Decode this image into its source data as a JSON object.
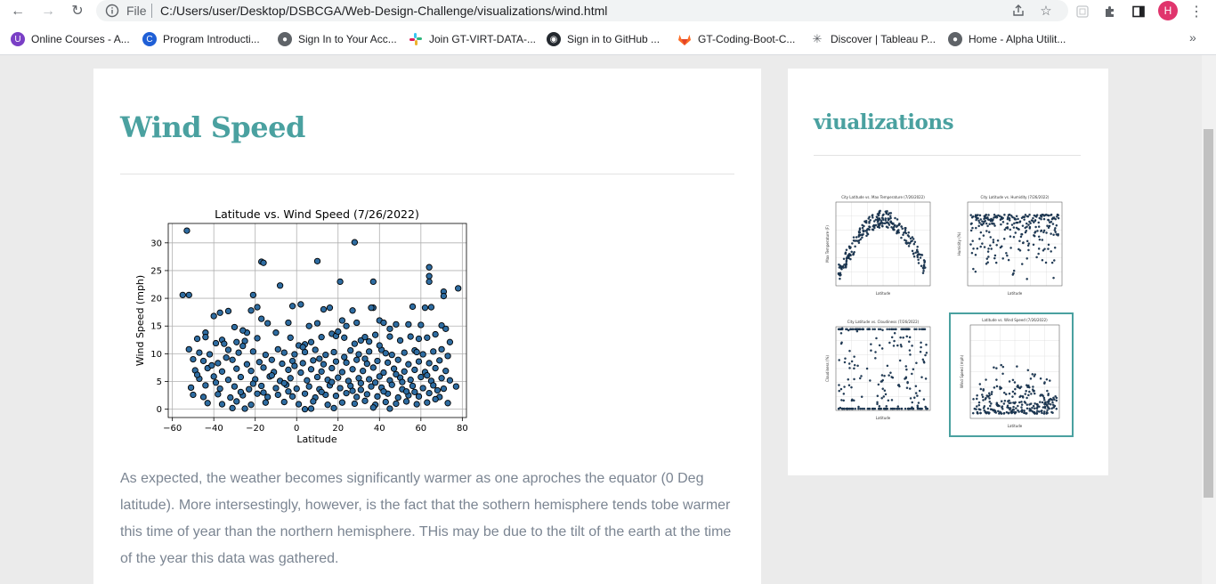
{
  "browser": {
    "file_label": "File",
    "url": "C:/Users/user/Desktop/DSBCGA/Web-Design-Challenge/visualizations/wind.html",
    "profile_initial": "H",
    "bookmarks": [
      {
        "label": "Online Courses - A...",
        "color": "#7a3fc6"
      },
      {
        "label": "Program Introducti...",
        "color": "#1f5fd6"
      },
      {
        "label": "Sign In to Your Acc...",
        "color": "#5f6368"
      },
      {
        "label": "Join GT-VIRT-DATA-...",
        "color": "#e01e5a"
      },
      {
        "label": "Sign in to GitHub ...",
        "color": "#24292f"
      },
      {
        "label": "GT-Coding-Boot-C...",
        "color": "#fc6d26"
      },
      {
        "label": "Discover | Tableau P...",
        "color": "#5f6368"
      },
      {
        "label": "Home - Alpha Utilit...",
        "color": "#5f6368"
      }
    ]
  },
  "main": {
    "title": "Wind Speed",
    "description": "As expected, the weather becomes significantly warmer as one aproches the equator (0 Deg latitude). More intersestingly, however, is the fact that the sothern hemisphere tends tobe warmer this time of year than the northern hemisphere. THis may be due to the tilt of the earth at the time of the year this data was gathered."
  },
  "sidebar": {
    "title": "viualizations",
    "thumbnails": [
      {
        "title": "City Latitude vs. Max Temperature (7/26/2022)",
        "ylabel": "Max Temperature (F)",
        "xlabel": "Latitude"
      },
      {
        "title": "City Latitude vs. Humidity (7/26/2022)",
        "ylabel": "Humidity (%)",
        "xlabel": "Latitude"
      },
      {
        "title": "City Latitude vs. Cloudiness (7/26/2022)",
        "ylabel": "Cloudiness (%)",
        "xlabel": "Latitude"
      },
      {
        "title": "Latitude vs. Wind Speed (7/26/2022)",
        "ylabel": "Wind Speed (mph)",
        "xlabel": "Latitude"
      }
    ]
  },
  "chart_data": {
    "type": "scatter",
    "title": "Latitude vs. Wind Speed (7/26/2022)",
    "xlabel": "Latitude",
    "ylabel": "Wind Speed (mph)",
    "xlim": [
      -62,
      82
    ],
    "ylim": [
      -1.5,
      33.5
    ],
    "xticks": [
      -60,
      -40,
      -20,
      0,
      20,
      40,
      60,
      80
    ],
    "yticks": [
      0,
      5,
      10,
      15,
      20,
      25,
      30
    ],
    "grid": true,
    "marker_color": "#2e6ca1",
    "edge_color": "#000000",
    "points": [
      [
        -53,
        32.2
      ],
      [
        -55,
        20.6
      ],
      [
        -52,
        20.6
      ],
      [
        -21,
        20.6
      ],
      [
        -17,
        26.6
      ],
      [
        -16,
        26.4
      ],
      [
        10,
        26.7
      ],
      [
        28,
        30.1
      ],
      [
        -8,
        22.3
      ],
      [
        21,
        23
      ],
      [
        37,
        23
      ],
      [
        64,
        25.6
      ],
      [
        64,
        24
      ],
      [
        64,
        23
      ],
      [
        71,
        21.2
      ],
      [
        71,
        20.4
      ],
      [
        78,
        21.8
      ],
      [
        2,
        18.9
      ],
      [
        -4,
        15.6
      ],
      [
        -2,
        18.6
      ],
      [
        -22,
        17.8
      ],
      [
        -19,
        18.4
      ],
      [
        -14,
        15.5
      ],
      [
        -17,
        16.3
      ],
      [
        16,
        18.3
      ],
      [
        13,
        18
      ],
      [
        27,
        17.8
      ],
      [
        37,
        18.3
      ],
      [
        36,
        18.3
      ],
      [
        56,
        18.5
      ],
      [
        62,
        18.3
      ],
      [
        65,
        18.4
      ],
      [
        -37,
        17.4
      ],
      [
        -33,
        17.7
      ],
      [
        -40,
        16.8
      ],
      [
        22,
        16
      ],
      [
        24,
        15
      ],
      [
        29,
        15.6
      ],
      [
        40,
        16
      ],
      [
        42,
        15.6
      ],
      [
        48,
        15.3
      ],
      [
        54,
        15.3
      ],
      [
        60,
        15.2
      ],
      [
        70,
        15.1
      ],
      [
        72,
        14.5
      ],
      [
        6,
        15
      ],
      [
        10,
        15.5
      ],
      [
        -30,
        14.8
      ],
      [
        -44,
        13.8
      ],
      [
        -44,
        13
      ],
      [
        -48,
        12.7
      ],
      [
        -36,
        12.5
      ],
      [
        -39,
        11.9
      ],
      [
        -35,
        11.8
      ],
      [
        -29,
        12.1
      ],
      [
        -25,
        12.3
      ],
      [
        -24,
        13.8
      ],
      [
        -10,
        13.8
      ],
      [
        -3,
        12.9
      ],
      [
        1,
        11.5
      ],
      [
        4,
        11.7
      ],
      [
        7,
        12.1
      ],
      [
        12,
        13
      ],
      [
        17,
        13.6
      ],
      [
        19,
        13.2
      ],
      [
        23,
        12.9
      ],
      [
        31,
        12.4
      ],
      [
        33,
        13
      ],
      [
        38,
        13.4
      ],
      [
        45,
        13.1
      ],
      [
        50,
        12.4
      ],
      [
        55,
        13.1
      ],
      [
        59,
        12.7
      ],
      [
        63,
        12.9
      ],
      [
        67,
        13.5
      ],
      [
        74,
        12.1
      ],
      [
        -52,
        10.8
      ],
      [
        -47,
        10.2
      ],
      [
        -42,
        9.9
      ],
      [
        -33,
        10.7
      ],
      [
        -28,
        10.2
      ],
      [
        -21,
        10.4
      ],
      [
        -15,
        9.8
      ],
      [
        -9,
        10.8
      ],
      [
        -6,
        10.2
      ],
      [
        -1,
        9.9
      ],
      [
        4,
        10.3
      ],
      [
        9,
        10.7
      ],
      [
        14,
        9.8
      ],
      [
        18,
        10.3
      ],
      [
        26,
        10.6
      ],
      [
        30,
        9.9
      ],
      [
        35,
        10.4
      ],
      [
        41,
        10.7
      ],
      [
        46,
        9.8
      ],
      [
        52,
        10.2
      ],
      [
        57,
        10.6
      ],
      [
        61,
        9.9
      ],
      [
        66,
        10.4
      ],
      [
        70,
        10.8
      ],
      [
        73,
        9.6
      ],
      [
        -50,
        9
      ],
      [
        -45,
        8.7
      ],
      [
        -38,
        8.3
      ],
      [
        -31,
        8.9
      ],
      [
        -24,
        8.1
      ],
      [
        -18,
        8.5
      ],
      [
        -12,
        8.9
      ],
      [
        -7,
        8.2
      ],
      [
        -2,
        8.7
      ],
      [
        3,
        8.3
      ],
      [
        8,
        8.8
      ],
      [
        13,
        8.1
      ],
      [
        19,
        8.6
      ],
      [
        24,
        8.4
      ],
      [
        29,
        8.9
      ],
      [
        34,
        8.2
      ],
      [
        39,
        8.7
      ],
      [
        44,
        8.4
      ],
      [
        49,
        8.9
      ],
      [
        54,
        8.1
      ],
      [
        59,
        8.6
      ],
      [
        64,
        8.3
      ],
      [
        69,
        8.8
      ],
      [
        -49,
        7
      ],
      [
        -43,
        7.4
      ],
      [
        -36,
        6.8
      ],
      [
        -29,
        7.3
      ],
      [
        -22,
        6.9
      ],
      [
        -16,
        7.5
      ],
      [
        -11,
        6.7
      ],
      [
        -4,
        7.1
      ],
      [
        2,
        6.6
      ],
      [
        7,
        7.2
      ],
      [
        12,
        6.8
      ],
      [
        17,
        7.4
      ],
      [
        22,
        6.7
      ],
      [
        27,
        7.2
      ],
      [
        32,
        6.9
      ],
      [
        37,
        7.5
      ],
      [
        42,
        6.6
      ],
      [
        47,
        7.3
      ],
      [
        52,
        6.8
      ],
      [
        57,
        7.1
      ],
      [
        62,
        6.7
      ],
      [
        67,
        7.4
      ],
      [
        72,
        6.9
      ],
      [
        -47,
        5.5
      ],
      [
        -40,
        5.9
      ],
      [
        -33,
        5.3
      ],
      [
        -27,
        5.8
      ],
      [
        -20,
        5.4
      ],
      [
        -13,
        5.9
      ],
      [
        -8,
        5.1
      ],
      [
        -3,
        5.6
      ],
      [
        5,
        5.2
      ],
      [
        10,
        5.8
      ],
      [
        15,
        5.3
      ],
      [
        20,
        5.7
      ],
      [
        25,
        5.1
      ],
      [
        30,
        5.6
      ],
      [
        35,
        5.4
      ],
      [
        40,
        5.9
      ],
      [
        45,
        5.2
      ],
      [
        50,
        5.7
      ],
      [
        55,
        5.3
      ],
      [
        60,
        5.8
      ],
      [
        65,
        5.1
      ],
      [
        70,
        5.6
      ],
      [
        -51,
        3.9
      ],
      [
        -44,
        4.3
      ],
      [
        -37,
        3.7
      ],
      [
        -30,
        4.1
      ],
      [
        -23,
        3.6
      ],
      [
        -17,
        4.2
      ],
      [
        -10,
        3.8
      ],
      [
        -5,
        4.4
      ],
      [
        0,
        3.7
      ],
      [
        6,
        4.1
      ],
      [
        11,
        3.6
      ],
      [
        16,
        4.3
      ],
      [
        21,
        3.8
      ],
      [
        26,
        4.2
      ],
      [
        31,
        3.5
      ],
      [
        36,
        4.1
      ],
      [
        41,
        3.9
      ],
      [
        46,
        4.4
      ],
      [
        51,
        3.6
      ],
      [
        56,
        4.2
      ],
      [
        61,
        3.8
      ],
      [
        66,
        4.3
      ],
      [
        71,
        3.7
      ],
      [
        77,
        4.1
      ],
      [
        -50,
        2.6
      ],
      [
        -45,
        2.2
      ],
      [
        -38,
        2.7
      ],
      [
        -32,
        2.1
      ],
      [
        -26,
        2.5
      ],
      [
        -19,
        2.8
      ],
      [
        -14,
        2.2
      ],
      [
        -9,
        2.6
      ],
      [
        -2,
        2.3
      ],
      [
        4,
        2.8
      ],
      [
        9,
        2.1
      ],
      [
        14,
        2.6
      ],
      [
        19,
        2.4
      ],
      [
        24,
        2.9
      ],
      [
        29,
        2.2
      ],
      [
        34,
        2.7
      ],
      [
        39,
        2.3
      ],
      [
        44,
        2.8
      ],
      [
        49,
        2.1
      ],
      [
        54,
        2.5
      ],
      [
        59,
        2.3
      ],
      [
        64,
        2.9
      ],
      [
        69,
        2.2
      ],
      [
        -43,
        1.1
      ],
      [
        -36,
        0.9
      ],
      [
        -29,
        1.4
      ],
      [
        -22,
        0.8
      ],
      [
        -15,
        1.2
      ],
      [
        -6,
        1.3
      ],
      [
        1,
        0.9
      ],
      [
        8,
        1.4
      ],
      [
        15,
        0.8
      ],
      [
        22,
        1.2
      ],
      [
        28,
        1
      ],
      [
        33,
        1.5
      ],
      [
        38,
        0.8
      ],
      [
        43,
        1.3
      ],
      [
        48,
        1
      ],
      [
        53,
        1.4
      ],
      [
        58,
        0.9
      ],
      [
        63,
        1.2
      ],
      [
        73,
        1.1
      ],
      [
        -31,
        0.2
      ],
      [
        -25,
        0.1
      ],
      [
        4,
        0
      ],
      [
        7,
        0.1
      ],
      [
        18,
        0.2
      ],
      [
        37,
        0.3
      ],
      [
        45,
        0.1
      ],
      [
        -48,
        6.2
      ],
      [
        -41,
        7.9
      ],
      [
        -34,
        9.3
      ],
      [
        -26,
        11.4
      ],
      [
        -19,
        12.8
      ],
      [
        -12,
        6.1
      ],
      [
        -6,
        4.7
      ],
      [
        -1,
        7.8
      ],
      [
        3,
        11.2
      ],
      [
        11,
        9.1
      ],
      [
        17,
        4.9
      ],
      [
        23,
        9.4
      ],
      [
        28,
        11.8
      ],
      [
        33,
        9.1
      ],
      [
        38,
        4.8
      ],
      [
        43,
        10.1
      ],
      [
        48,
        6.3
      ],
      [
        53,
        3.2
      ],
      [
        58,
        10.3
      ],
      [
        63,
        6.1
      ],
      [
        68,
        3.4
      ],
      [
        74,
        5.2
      ],
      [
        -27,
        3.1
      ],
      [
        -16,
        3
      ],
      [
        -4,
        3.2
      ],
      [
        12,
        3.1
      ],
      [
        27,
        3.3
      ],
      [
        42,
        3.2
      ],
      [
        57,
        3.1
      ],
      [
        67,
        1.8
      ],
      [
        -39,
        4.8
      ],
      [
        -21,
        4.6
      ],
      [
        31,
        4.7
      ],
      [
        51,
        4.9
      ],
      [
        40,
        11.5
      ],
      [
        35,
        12.2
      ],
      [
        20,
        14
      ],
      [
        -26,
        14.2
      ],
      [
        45,
        14.5
      ]
    ]
  }
}
